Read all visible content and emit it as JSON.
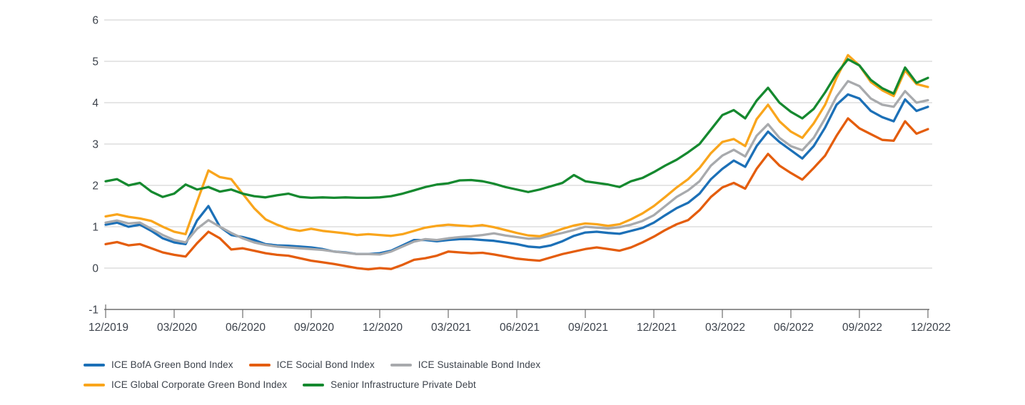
{
  "chart_data": {
    "type": "line",
    "title": "",
    "xlabel": "",
    "ylabel": "",
    "ylim": [
      -1,
      6
    ],
    "grid": "horizontal",
    "legend_position": "bottom",
    "y_ticks": [
      -1,
      0,
      1,
      2,
      3,
      4,
      5,
      6
    ],
    "x_tick_labels": [
      "12/2019",
      "03/2020",
      "06/2020",
      "09/2020",
      "12/2020",
      "03/2021",
      "06/2021",
      "09/2021",
      "12/2021",
      "03/2022",
      "06/2022",
      "09/2022",
      "12/2022"
    ],
    "x_unit": "months_since_12_2019_step_0_5",
    "axis_text_color": "#3c424b",
    "gridline_color": "#cccccc",
    "axis_line_color": "#6e6e6e",
    "series": [
      {
        "name": "ICE BofA Green Bond Index",
        "color": "#1c70b7",
        "values": [
          1.05,
          1.1,
          1.0,
          1.05,
          0.9,
          0.72,
          0.62,
          0.58,
          1.15,
          1.5,
          1.0,
          0.8,
          0.75,
          0.68,
          0.58,
          0.55,
          0.54,
          0.52,
          0.5,
          0.46,
          0.4,
          0.38,
          0.34,
          0.34,
          0.36,
          0.42,
          0.55,
          0.68,
          0.68,
          0.65,
          0.68,
          0.7,
          0.7,
          0.68,
          0.66,
          0.62,
          0.58,
          0.52,
          0.5,
          0.55,
          0.65,
          0.78,
          0.86,
          0.88,
          0.85,
          0.83,
          0.9,
          0.97,
          1.1,
          1.28,
          1.45,
          1.58,
          1.8,
          2.15,
          2.4,
          2.6,
          2.45,
          2.95,
          3.3,
          3.05,
          2.85,
          2.65,
          2.95,
          3.4,
          3.95,
          4.2,
          4.1,
          3.8,
          3.65,
          3.55,
          4.08,
          3.8,
          3.9
        ]
      },
      {
        "name": "ICE Social Bond Index",
        "color": "#e45d0d",
        "values": [
          0.58,
          0.63,
          0.55,
          0.58,
          0.48,
          0.38,
          0.32,
          0.28,
          0.6,
          0.88,
          0.72,
          0.45,
          0.48,
          0.42,
          0.36,
          0.32,
          0.3,
          0.24,
          0.18,
          0.14,
          0.1,
          0.05,
          0.0,
          -0.03,
          0.0,
          -0.02,
          0.08,
          0.2,
          0.24,
          0.3,
          0.4,
          0.38,
          0.36,
          0.37,
          0.33,
          0.28,
          0.23,
          0.2,
          0.18,
          0.26,
          0.34,
          0.4,
          0.46,
          0.5,
          0.46,
          0.42,
          0.5,
          0.62,
          0.76,
          0.92,
          1.06,
          1.16,
          1.4,
          1.72,
          1.95,
          2.06,
          1.92,
          2.4,
          2.76,
          2.48,
          2.3,
          2.14,
          2.42,
          2.72,
          3.2,
          3.62,
          3.38,
          3.24,
          3.1,
          3.08,
          3.55,
          3.25,
          3.36
        ]
      },
      {
        "name": "ICE Sustainable Bond Index",
        "color": "#a8aaad",
        "values": [
          1.1,
          1.15,
          1.08,
          1.1,
          0.95,
          0.8,
          0.68,
          0.62,
          0.95,
          1.16,
          1.0,
          0.85,
          0.72,
          0.62,
          0.56,
          0.52,
          0.5,
          0.48,
          0.46,
          0.44,
          0.4,
          0.37,
          0.34,
          0.34,
          0.33,
          0.4,
          0.52,
          0.64,
          0.7,
          0.68,
          0.72,
          0.75,
          0.77,
          0.8,
          0.84,
          0.79,
          0.75,
          0.71,
          0.72,
          0.79,
          0.85,
          0.92,
          1.0,
          0.98,
          0.96,
          0.99,
          1.05,
          1.14,
          1.28,
          1.5,
          1.72,
          1.88,
          2.1,
          2.48,
          2.72,
          2.86,
          2.7,
          3.2,
          3.48,
          3.15,
          2.95,
          2.85,
          3.15,
          3.62,
          4.15,
          4.52,
          4.4,
          4.1,
          3.95,
          3.9,
          4.28,
          4.0,
          4.06
        ]
      },
      {
        "name": "ICE Global Corporate Green Bond Index",
        "color": "#f9a51c",
        "values": [
          1.25,
          1.3,
          1.24,
          1.2,
          1.14,
          1.0,
          0.88,
          0.82,
          1.6,
          2.36,
          2.2,
          2.15,
          1.8,
          1.45,
          1.18,
          1.05,
          0.95,
          0.9,
          0.95,
          0.9,
          0.87,
          0.84,
          0.8,
          0.82,
          0.8,
          0.78,
          0.82,
          0.9,
          0.98,
          1.02,
          1.05,
          1.03,
          1.01,
          1.04,
          0.99,
          0.92,
          0.85,
          0.79,
          0.77,
          0.85,
          0.95,
          1.03,
          1.08,
          1.06,
          1.02,
          1.06,
          1.18,
          1.32,
          1.5,
          1.72,
          1.95,
          2.15,
          2.42,
          2.78,
          3.05,
          3.12,
          2.95,
          3.6,
          3.95,
          3.55,
          3.3,
          3.15,
          3.5,
          3.95,
          4.6,
          5.15,
          4.9,
          4.5,
          4.3,
          4.16,
          4.78,
          4.45,
          4.38
        ]
      },
      {
        "name": "Senior Infrastructure Private Debt",
        "color": "#15892f",
        "values": [
          2.1,
          2.15,
          2.0,
          2.06,
          1.85,
          1.72,
          1.8,
          2.02,
          1.9,
          1.96,
          1.85,
          1.9,
          1.8,
          1.74,
          1.71,
          1.76,
          1.8,
          1.72,
          1.7,
          1.71,
          1.7,
          1.71,
          1.7,
          1.7,
          1.71,
          1.74,
          1.8,
          1.88,
          1.96,
          2.02,
          2.05,
          2.12,
          2.13,
          2.1,
          2.04,
          1.96,
          1.9,
          1.84,
          1.9,
          1.98,
          2.06,
          2.25,
          2.1,
          2.06,
          2.02,
          1.96,
          2.1,
          2.18,
          2.32,
          2.48,
          2.62,
          2.8,
          3.0,
          3.35,
          3.7,
          3.82,
          3.62,
          4.05,
          4.36,
          4.0,
          3.78,
          3.62,
          3.85,
          4.25,
          4.7,
          5.05,
          4.9,
          4.55,
          4.35,
          4.22,
          4.85,
          4.48,
          4.6
        ]
      }
    ]
  }
}
